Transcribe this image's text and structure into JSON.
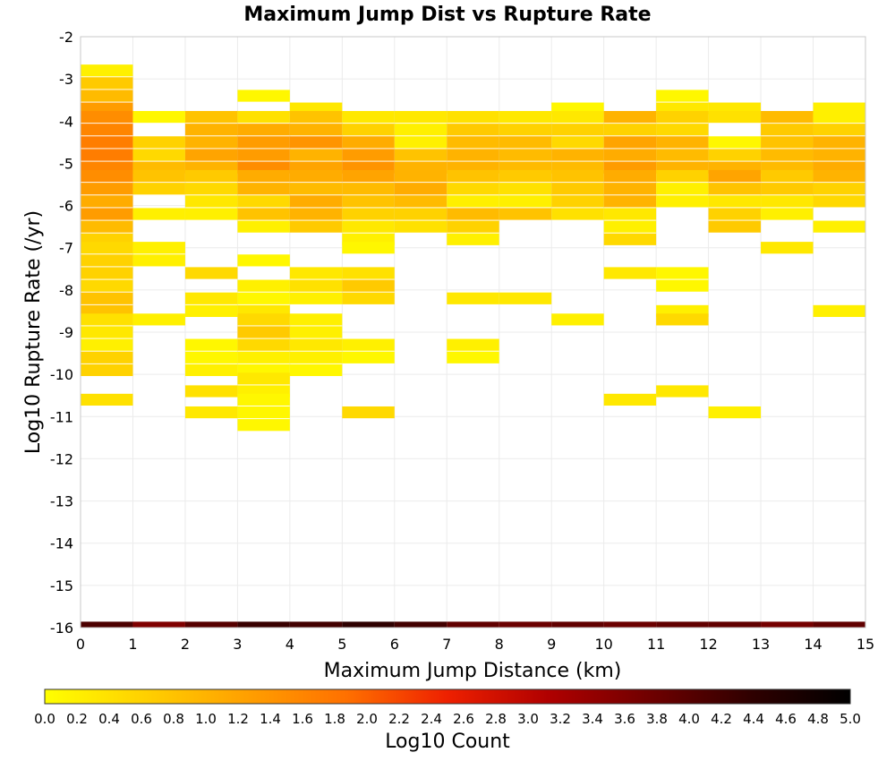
{
  "chart_data": {
    "type": "heatmap",
    "title": "Maximum Jump Dist vs Rupture Rate",
    "xlabel": "Maximum Jump Distance (km)",
    "ylabel": "Log10 Rupture Rate (/yr)",
    "xlim": [
      0,
      15
    ],
    "ylim": [
      -16,
      -2
    ],
    "x_ticks": [
      "0",
      "1",
      "2",
      "3",
      "4",
      "5",
      "6",
      "7",
      "8",
      "9",
      "10",
      "11",
      "12",
      "13",
      "14",
      "15"
    ],
    "y_ticks": [
      "-2",
      "-3",
      "-4",
      "-5",
      "-6",
      "-7",
      "-8",
      "-9",
      "-10",
      "-11",
      "-12",
      "-13",
      "-14",
      "-15",
      "-16"
    ],
    "grid": true,
    "bin_width_x": 1,
    "bin_height_y": 0.28,
    "colorbar": {
      "label": "Log10 Count",
      "range": [
        0,
        5
      ],
      "ticks": [
        "0.0",
        "0.2",
        "0.4",
        "0.6",
        "0.8",
        "1.0",
        "1.2",
        "1.4",
        "1.6",
        "1.8",
        "2.0",
        "2.2",
        "2.4",
        "2.6",
        "2.8",
        "3.0",
        "3.2",
        "3.4",
        "3.6",
        "3.8",
        "4.0",
        "4.2",
        "4.4",
        "4.6",
        "4.8",
        "5.0"
      ],
      "colors": [
        "#ffff00",
        "#ffd000",
        "#ffa000",
        "#ff7000",
        "#ee2000",
        "#b00000",
        "#700000",
        "#300000",
        "#000000"
      ]
    },
    "columns": [
      {
        "x": 0,
        "cells": [
          [
            -2.8,
            0.2
          ],
          [
            -3.1,
            0.7
          ],
          [
            -3.4,
            0.9
          ],
          [
            -3.7,
            1.3
          ],
          [
            -3.9,
            1.5
          ],
          [
            -4.2,
            1.6
          ],
          [
            -4.5,
            1.7
          ],
          [
            -4.8,
            1.7
          ],
          [
            -5.1,
            1.6
          ],
          [
            -5.3,
            1.5
          ],
          [
            -5.6,
            1.3
          ],
          [
            -5.9,
            1.1
          ],
          [
            -6.2,
            1.3
          ],
          [
            -6.5,
            0.9
          ],
          [
            -6.8,
            0.6
          ],
          [
            -7.0,
            0.5
          ],
          [
            -7.3,
            0.6
          ],
          [
            -7.6,
            0.6
          ],
          [
            -7.9,
            0.5
          ],
          [
            -8.2,
            0.8
          ],
          [
            -8.5,
            0.8
          ],
          [
            -8.7,
            0.4
          ],
          [
            -9.0,
            0.3
          ],
          [
            -9.3,
            0.2
          ],
          [
            -9.6,
            0.6
          ],
          [
            -9.9,
            0.6
          ],
          [
            -10.6,
            0.4
          ],
          [
            -16,
            4.1
          ]
        ]
      },
      {
        "x": 1,
        "cells": [
          [
            -3.9,
            0.1
          ],
          [
            -4.5,
            0.6
          ],
          [
            -4.8,
            0.5
          ],
          [
            -5.1,
            0.9
          ],
          [
            -5.3,
            0.8
          ],
          [
            -5.6,
            0.6
          ],
          [
            -6.2,
            0.2
          ],
          [
            -7.0,
            0.2
          ],
          [
            -7.3,
            0.2
          ],
          [
            -8.7,
            0.2
          ],
          [
            -16,
            3.6
          ]
        ]
      },
      {
        "x": 2,
        "cells": [
          [
            -3.9,
            0.8
          ],
          [
            -4.2,
            1.0
          ],
          [
            -4.5,
            1.0
          ],
          [
            -4.8,
            1.2
          ],
          [
            -5.1,
            1.0
          ],
          [
            -5.3,
            0.7
          ],
          [
            -5.6,
            0.5
          ],
          [
            -5.9,
            0.3
          ],
          [
            -6.2,
            0.2
          ],
          [
            -7.6,
            0.5
          ],
          [
            -8.2,
            0.3
          ],
          [
            -8.5,
            0.2
          ],
          [
            -9.3,
            0.1
          ],
          [
            -9.6,
            0.1
          ],
          [
            -9.9,
            0.2
          ],
          [
            -10.4,
            0.4
          ],
          [
            -10.9,
            0.3
          ],
          [
            -16,
            4.0
          ]
        ]
      },
      {
        "x": 3,
        "cells": [
          [
            -3.4,
            0.1
          ],
          [
            -3.9,
            0.4
          ],
          [
            -4.2,
            1.1
          ],
          [
            -4.5,
            1.3
          ],
          [
            -4.8,
            1.3
          ],
          [
            -5.1,
            1.5
          ],
          [
            -5.3,
            1.1
          ],
          [
            -5.6,
            1.0
          ],
          [
            -5.9,
            0.5
          ],
          [
            -6.2,
            0.8
          ],
          [
            -6.5,
            0.2
          ],
          [
            -7.3,
            0.1
          ],
          [
            -7.9,
            0.2
          ],
          [
            -8.2,
            0.1
          ],
          [
            -8.5,
            0.3
          ],
          [
            -8.7,
            0.5
          ],
          [
            -9.0,
            0.7
          ],
          [
            -9.3,
            0.5
          ],
          [
            -9.6,
            0.2
          ],
          [
            -9.9,
            0.1
          ],
          [
            -10.1,
            0.3
          ],
          [
            -10.4,
            0.2
          ],
          [
            -10.6,
            0.1
          ],
          [
            -10.9,
            0.1
          ],
          [
            -11.2,
            0.1
          ],
          [
            -16,
            4.3
          ]
        ]
      },
      {
        "x": 4,
        "cells": [
          [
            -3.7,
            0.3
          ],
          [
            -3.9,
            0.8
          ],
          [
            -4.2,
            1.0
          ],
          [
            -4.5,
            1.4
          ],
          [
            -4.8,
            1.0
          ],
          [
            -5.1,
            1.2
          ],
          [
            -5.3,
            1.1
          ],
          [
            -5.6,
            0.9
          ],
          [
            -5.9,
            1.1
          ],
          [
            -6.2,
            1.0
          ],
          [
            -6.5,
            0.7
          ],
          [
            -7.6,
            0.3
          ],
          [
            -7.9,
            0.4
          ],
          [
            -8.2,
            0.2
          ],
          [
            -8.7,
            0.2
          ],
          [
            -9.0,
            0.2
          ],
          [
            -9.3,
            0.3
          ],
          [
            -9.6,
            0.2
          ],
          [
            -9.9,
            0.1
          ],
          [
            -16,
            4.2
          ]
        ]
      },
      {
        "x": 5,
        "cells": [
          [
            -3.9,
            0.3
          ],
          [
            -4.2,
            0.6
          ],
          [
            -4.5,
            1.1
          ],
          [
            -4.8,
            1.3
          ],
          [
            -5.1,
            1.4
          ],
          [
            -5.3,
            1.2
          ],
          [
            -5.6,
            0.9
          ],
          [
            -5.9,
            0.8
          ],
          [
            -6.2,
            0.6
          ],
          [
            -6.5,
            0.3
          ],
          [
            -6.8,
            0.2
          ],
          [
            -7.0,
            0.1
          ],
          [
            -7.6,
            0.4
          ],
          [
            -7.9,
            0.7
          ],
          [
            -8.2,
            0.5
          ],
          [
            -9.3,
            0.2
          ],
          [
            -9.6,
            0.1
          ],
          [
            -10.9,
            0.5
          ],
          [
            -16,
            4.4
          ]
        ]
      },
      {
        "x": 6,
        "cells": [
          [
            -3.9,
            0.3
          ],
          [
            -4.2,
            0.2
          ],
          [
            -4.5,
            0.2
          ],
          [
            -4.8,
            0.8
          ],
          [
            -5.1,
            1.0
          ],
          [
            -5.3,
            1.0
          ],
          [
            -5.6,
            1.1
          ],
          [
            -5.9,
            0.9
          ],
          [
            -6.2,
            0.6
          ],
          [
            -6.5,
            0.4
          ],
          [
            -16,
            4.2
          ]
        ]
      },
      {
        "x": 7,
        "cells": [
          [
            -3.9,
            0.4
          ],
          [
            -4.2,
            0.7
          ],
          [
            -4.5,
            0.9
          ],
          [
            -4.8,
            1.0
          ],
          [
            -5.1,
            1.0
          ],
          [
            -5.3,
            0.8
          ],
          [
            -5.6,
            0.5
          ],
          [
            -5.9,
            0.2
          ],
          [
            -6.2,
            0.9
          ],
          [
            -6.5,
            0.6
          ],
          [
            -6.8,
            0.2
          ],
          [
            -8.2,
            0.3
          ],
          [
            -9.3,
            0.2
          ],
          [
            -9.6,
            0.1
          ],
          [
            -16,
            3.9
          ]
        ]
      },
      {
        "x": 8,
        "cells": [
          [
            -3.9,
            0.3
          ],
          [
            -4.2,
            0.6
          ],
          [
            -4.5,
            0.9
          ],
          [
            -4.8,
            0.9
          ],
          [
            -5.1,
            0.9
          ],
          [
            -5.3,
            0.7
          ],
          [
            -5.6,
            0.4
          ],
          [
            -5.9,
            0.2
          ],
          [
            -6.2,
            0.8
          ],
          [
            -8.2,
            0.3
          ],
          [
            -16,
            3.8
          ]
        ]
      },
      {
        "x": 9,
        "cells": [
          [
            -3.7,
            0.1
          ],
          [
            -3.9,
            0.3
          ],
          [
            -4.2,
            0.6
          ],
          [
            -4.5,
            0.5
          ],
          [
            -4.8,
            1.0
          ],
          [
            -5.1,
            0.9
          ],
          [
            -5.3,
            0.8
          ],
          [
            -5.6,
            0.7
          ],
          [
            -5.9,
            0.6
          ],
          [
            -6.2,
            0.4
          ],
          [
            -8.7,
            0.2
          ],
          [
            -16,
            3.9
          ]
        ]
      },
      {
        "x": 10,
        "cells": [
          [
            -3.9,
            1.0
          ],
          [
            -4.2,
            0.6
          ],
          [
            -4.5,
            1.2
          ],
          [
            -4.8,
            1.1
          ],
          [
            -5.1,
            1.3
          ],
          [
            -5.3,
            1.1
          ],
          [
            -5.6,
            1.0
          ],
          [
            -5.9,
            1.0
          ],
          [
            -6.2,
            0.3
          ],
          [
            -6.5,
            0.2
          ],
          [
            -6.8,
            0.5
          ],
          [
            -7.6,
            0.3
          ],
          [
            -10.6,
            0.3
          ],
          [
            -16,
            3.8
          ]
        ]
      },
      {
        "x": 11,
        "cells": [
          [
            -3.4,
            0.1
          ],
          [
            -3.7,
            0.3
          ],
          [
            -3.9,
            0.6
          ],
          [
            -4.2,
            0.5
          ],
          [
            -4.5,
            1.0
          ],
          [
            -4.8,
            0.9
          ],
          [
            -5.1,
            1.0
          ],
          [
            -5.3,
            0.6
          ],
          [
            -5.6,
            0.2
          ],
          [
            -5.9,
            0.2
          ],
          [
            -7.6,
            0.1
          ],
          [
            -7.9,
            0.1
          ],
          [
            -8.5,
            0.2
          ],
          [
            -8.7,
            0.5
          ],
          [
            -10.4,
            0.3
          ],
          [
            -16,
            3.9
          ]
        ]
      },
      {
        "x": 12,
        "cells": [
          [
            -3.7,
            0.3
          ],
          [
            -3.9,
            0.4
          ],
          [
            -4.5,
            0.1
          ],
          [
            -4.8,
            0.6
          ],
          [
            -5.1,
            1.0
          ],
          [
            -5.3,
            1.2
          ],
          [
            -5.6,
            0.8
          ],
          [
            -5.9,
            0.3
          ],
          [
            -6.2,
            0.6
          ],
          [
            -6.5,
            0.7
          ],
          [
            -10.9,
            0.2
          ],
          [
            -16,
            3.9
          ]
        ]
      },
      {
        "x": 13,
        "cells": [
          [
            -3.9,
            0.9
          ],
          [
            -4.2,
            0.7
          ],
          [
            -4.5,
            0.8
          ],
          [
            -4.8,
            0.9
          ],
          [
            -5.1,
            0.9
          ],
          [
            -5.3,
            0.7
          ],
          [
            -5.6,
            0.7
          ],
          [
            -5.9,
            0.3
          ],
          [
            -6.2,
            0.2
          ],
          [
            -7.0,
            0.3
          ],
          [
            -16,
            3.7
          ]
        ]
      },
      {
        "x": 14,
        "cells": [
          [
            -3.7,
            0.2
          ],
          [
            -3.9,
            0.2
          ],
          [
            -4.2,
            0.6
          ],
          [
            -4.5,
            1.0
          ],
          [
            -4.8,
            1.0
          ],
          [
            -5.1,
            1.1
          ],
          [
            -5.3,
            1.0
          ],
          [
            -5.6,
            0.6
          ],
          [
            -5.9,
            0.5
          ],
          [
            -6.5,
            0.2
          ],
          [
            -8.5,
            0.2
          ],
          [
            -16,
            3.9
          ]
        ]
      }
    ]
  }
}
